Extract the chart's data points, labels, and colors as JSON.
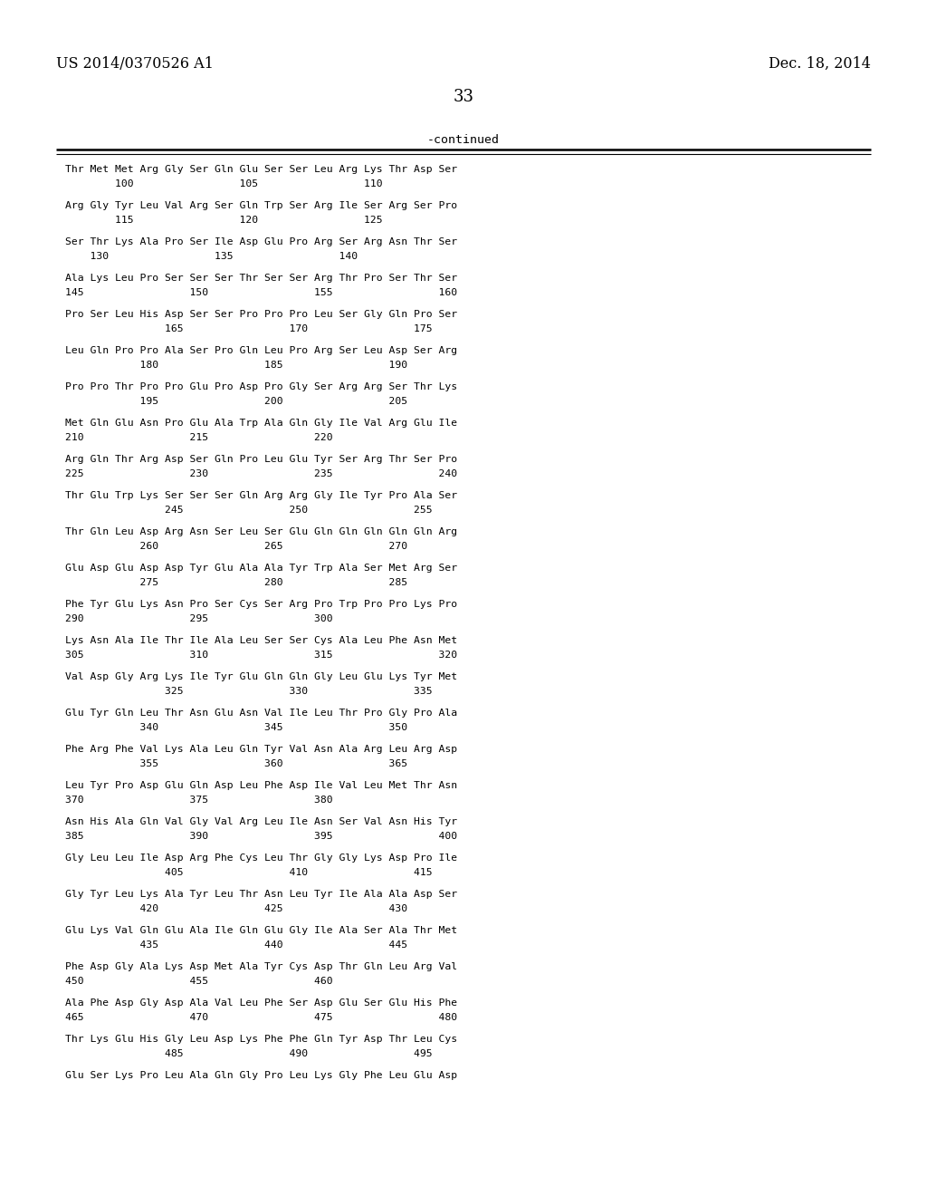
{
  "patent_number": "US 2014/0370526 A1",
  "date": "Dec. 18, 2014",
  "page_number": "33",
  "continued_label": "-continued",
  "background_color": "#ffffff",
  "text_color": "#000000",
  "sequence_blocks": [
    {
      "seq": "Thr Met Met Arg Gly Ser Gln Glu Ser Ser Leu Arg Lys Thr Asp Ser",
      "num": "        100                 105                 110"
    },
    {
      "seq": "Arg Gly Tyr Leu Val Arg Ser Gln Trp Ser Arg Ile Ser Arg Ser Pro",
      "num": "        115                 120                 125"
    },
    {
      "seq": "Ser Thr Lys Ala Pro Ser Ile Asp Glu Pro Arg Ser Arg Asn Thr Ser",
      "num": "    130                 135                 140"
    },
    {
      "seq": "Ala Lys Leu Pro Ser Ser Ser Thr Ser Ser Arg Thr Pro Ser Thr Ser",
      "num": "145                 150                 155                 160"
    },
    {
      "seq": "Pro Ser Leu His Asp Ser Ser Pro Pro Pro Leu Ser Gly Gln Pro Ser",
      "num": "                165                 170                 175"
    },
    {
      "seq": "Leu Gln Pro Pro Ala Ser Pro Gln Leu Pro Arg Ser Leu Asp Ser Arg",
      "num": "            180                 185                 190"
    },
    {
      "seq": "Pro Pro Thr Pro Pro Glu Pro Asp Pro Gly Ser Arg Arg Ser Thr Lys",
      "num": "            195                 200                 205"
    },
    {
      "seq": "Met Gln Glu Asn Pro Glu Ala Trp Ala Gln Gly Ile Val Arg Glu Ile",
      "num": "210                 215                 220"
    },
    {
      "seq": "Arg Gln Thr Arg Asp Ser Gln Pro Leu Glu Tyr Ser Arg Thr Ser Pro",
      "num": "225                 230                 235                 240"
    },
    {
      "seq": "Thr Glu Trp Lys Ser Ser Ser Gln Arg Arg Gly Ile Tyr Pro Ala Ser",
      "num": "                245                 250                 255"
    },
    {
      "seq": "Thr Gln Leu Asp Arg Asn Ser Leu Ser Glu Gln Gln Gln Gln Gln Arg",
      "num": "            260                 265                 270"
    },
    {
      "seq": "Glu Asp Glu Asp Asp Tyr Glu Ala Ala Tyr Trp Ala Ser Met Arg Ser",
      "num": "            275                 280                 285"
    },
    {
      "seq": "Phe Tyr Glu Lys Asn Pro Ser Cys Ser Arg Pro Trp Pro Pro Lys Pro",
      "num": "290                 295                 300"
    },
    {
      "seq": "Lys Asn Ala Ile Thr Ile Ala Leu Ser Ser Cys Ala Leu Phe Asn Met",
      "num": "305                 310                 315                 320"
    },
    {
      "seq": "Val Asp Gly Arg Lys Ile Tyr Glu Gln Gln Gly Leu Glu Lys Tyr Met",
      "num": "                325                 330                 335"
    },
    {
      "seq": "Glu Tyr Gln Leu Thr Asn Glu Asn Val Ile Leu Thr Pro Gly Pro Ala",
      "num": "            340                 345                 350"
    },
    {
      "seq": "Phe Arg Phe Val Lys Ala Leu Gln Tyr Val Asn Ala Arg Leu Arg Asp",
      "num": "            355                 360                 365"
    },
    {
      "seq": "Leu Tyr Pro Asp Glu Gln Asp Leu Phe Asp Ile Val Leu Met Thr Asn",
      "num": "370                 375                 380"
    },
    {
      "seq": "Asn His Ala Gln Val Gly Val Arg Leu Ile Asn Ser Val Asn His Tyr",
      "num": "385                 390                 395                 400"
    },
    {
      "seq": "Gly Leu Leu Ile Asp Arg Phe Cys Leu Thr Gly Gly Lys Asp Pro Ile",
      "num": "                405                 410                 415"
    },
    {
      "seq": "Gly Tyr Leu Lys Ala Tyr Leu Thr Asn Leu Tyr Ile Ala Ala Asp Ser",
      "num": "            420                 425                 430"
    },
    {
      "seq": "Glu Lys Val Gln Glu Ala Ile Gln Glu Gly Ile Ala Ser Ala Thr Met",
      "num": "            435                 440                 445"
    },
    {
      "seq": "Phe Asp Gly Ala Lys Asp Met Ala Tyr Cys Asp Thr Gln Leu Arg Val",
      "num": "450                 455                 460"
    },
    {
      "seq": "Ala Phe Asp Gly Asp Ala Val Leu Phe Ser Asp Glu Ser Glu His Phe",
      "num": "465                 470                 475                 480"
    },
    {
      "seq": "Thr Lys Glu His Gly Leu Asp Lys Phe Phe Gln Tyr Asp Thr Leu Cys",
      "num": "                485                 490                 495"
    },
    {
      "seq": "Glu Ser Lys Pro Leu Ala Gln Gly Pro Leu Lys Gly Phe Leu Glu Asp",
      "num": ""
    }
  ]
}
